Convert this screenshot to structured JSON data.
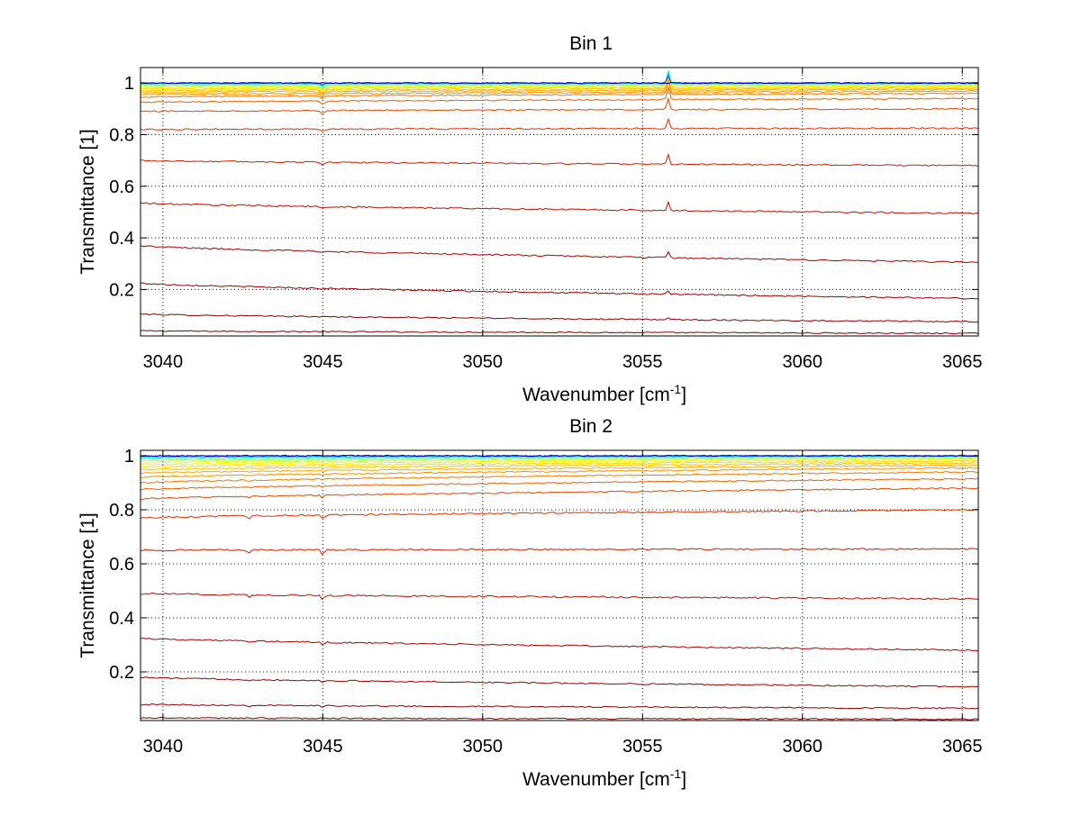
{
  "figure": {
    "background": "#ffffff"
  },
  "chart_data": [
    {
      "type": "line",
      "title": "Bin 1",
      "xlabel": "Wavenumber [cm",
      "xlabel_sup": "-1",
      "xlabel_end": "]",
      "ylabel": "Transmittance [1]",
      "xlim": [
        3039.3,
        3065.5
      ],
      "ylim": [
        0.02,
        1.06
      ],
      "xticks": [
        3040,
        3045,
        3050,
        3055,
        3060,
        3065
      ],
      "xtick_labels": [
        "3040",
        "3045",
        "3050",
        "3055",
        "3060",
        "3065"
      ],
      "yticks": [
        0.2,
        0.4,
        0.6,
        0.8,
        1
      ],
      "ytick_labels": [
        "0.2",
        "0.4",
        "0.6",
        "0.8",
        "1"
      ],
      "grid": true,
      "feature_peak_x": 3055.8,
      "series": [
        {
          "color": "#800000",
          "start": 0.04,
          "end": 0.03,
          "peak": 0.0
        },
        {
          "color": "#8b0000",
          "start": 0.105,
          "end": 0.075,
          "peak": 0.005
        },
        {
          "color": "#990000",
          "start": 0.225,
          "end": 0.165,
          "peak": 0.01
        },
        {
          "color": "#a80000",
          "start": 0.37,
          "end": 0.305,
          "peak": 0.02
        },
        {
          "color": "#b81000",
          "start": 0.535,
          "end": 0.495,
          "peak": 0.03
        },
        {
          "color": "#c82000",
          "start": 0.7,
          "end": 0.68,
          "peak": 0.035
        },
        {
          "color": "#d83000",
          "start": 0.82,
          "end": 0.825,
          "peak": 0.04
        },
        {
          "color": "#e04800",
          "start": 0.89,
          "end": 0.9,
          "peak": 0.045
        },
        {
          "color": "#e86000",
          "start": 0.925,
          "end": 0.94,
          "peak": 0.05
        },
        {
          "color": "#f07800",
          "start": 0.945,
          "end": 0.96,
          "peak": 0.055
        },
        {
          "color": "#f89000",
          "start": 0.955,
          "end": 0.968,
          "peak": 0.055
        },
        {
          "color": "#ffa800",
          "start": 0.963,
          "end": 0.975,
          "peak": 0.055
        },
        {
          "color": "#ffc000",
          "start": 0.97,
          "end": 0.98,
          "peak": 0.055
        },
        {
          "color": "#ffd800",
          "start": 0.976,
          "end": 0.985,
          "peak": 0.055
        },
        {
          "color": "#fff000",
          "start": 0.981,
          "end": 0.989,
          "peak": 0.055
        },
        {
          "color": "#e0ff20",
          "start": 0.986,
          "end": 0.992,
          "peak": 0.06
        },
        {
          "color": "#a0ff60",
          "start": 0.99,
          "end": 0.995,
          "peak": 0.06
        },
        {
          "color": "#60ffa0",
          "start": 0.994,
          "end": 0.997,
          "peak": 0.055
        },
        {
          "color": "#20ffe0",
          "start": 0.997,
          "end": 0.999,
          "peak": 0.05
        },
        {
          "color": "#00c0ff",
          "start": 0.999,
          "end": 1.0,
          "peak": 0.04
        },
        {
          "color": "#0060ff",
          "start": 1.0,
          "end": 1.0,
          "peak": 0.03
        },
        {
          "color": "#0000c0",
          "start": 1.0,
          "end": 1.0,
          "peak": 0.0
        }
      ]
    },
    {
      "type": "line",
      "title": "Bin 2",
      "xlabel": "Wavenumber [cm",
      "xlabel_sup": "-1",
      "xlabel_end": "]",
      "ylabel": "Transmittance [1]",
      "xlim": [
        3039.3,
        3065.5
      ],
      "ylim": [
        0.02,
        1.02
      ],
      "xticks": [
        3040,
        3045,
        3050,
        3055,
        3060,
        3065
      ],
      "xtick_labels": [
        "3040",
        "3045",
        "3050",
        "3055",
        "3060",
        "3065"
      ],
      "yticks": [
        0.2,
        0.4,
        0.6,
        0.8,
        1
      ],
      "ytick_labels": [
        "0.2",
        "0.4",
        "0.6",
        "0.8",
        "1"
      ],
      "grid": true,
      "feature_peak_x": 3045.0,
      "series": [
        {
          "color": "#800000",
          "start": 0.03,
          "end": 0.025,
          "peak": 0.0
        },
        {
          "color": "#8b0000",
          "start": 0.08,
          "end": 0.065,
          "peak": -0.005
        },
        {
          "color": "#990000",
          "start": 0.18,
          "end": 0.145,
          "peak": -0.008
        },
        {
          "color": "#a80000",
          "start": 0.325,
          "end": 0.28,
          "peak": -0.012
        },
        {
          "color": "#b81000",
          "start": 0.49,
          "end": 0.47,
          "peak": -0.015
        },
        {
          "color": "#c82000",
          "start": 0.65,
          "end": 0.655,
          "peak": -0.02
        },
        {
          "color": "#d83000",
          "start": 0.77,
          "end": 0.8,
          "peak": -0.015
        },
        {
          "color": "#e04800",
          "start": 0.84,
          "end": 0.88,
          "peak": -0.01
        },
        {
          "color": "#e86000",
          "start": 0.875,
          "end": 0.915,
          "peak": -0.008
        },
        {
          "color": "#f07800",
          "start": 0.9,
          "end": 0.94,
          "peak": -0.005
        },
        {
          "color": "#f89000",
          "start": 0.92,
          "end": 0.955,
          "peak": -0.004
        },
        {
          "color": "#ffa800",
          "start": 0.935,
          "end": 0.965,
          "peak": -0.003
        },
        {
          "color": "#ffc000",
          "start": 0.948,
          "end": 0.973,
          "peak": -0.002
        },
        {
          "color": "#ffd800",
          "start": 0.958,
          "end": 0.98,
          "peak": -0.002
        },
        {
          "color": "#fff000",
          "start": 0.967,
          "end": 0.985,
          "peak": -0.001
        },
        {
          "color": "#e0ff20",
          "start": 0.975,
          "end": 0.99,
          "peak": 0.0
        },
        {
          "color": "#a0ff60",
          "start": 0.982,
          "end": 0.993,
          "peak": 0.0
        },
        {
          "color": "#60ffa0",
          "start": 0.988,
          "end": 0.996,
          "peak": 0.0
        },
        {
          "color": "#20ffe0",
          "start": 0.993,
          "end": 0.998,
          "peak": 0.0
        },
        {
          "color": "#00c0ff",
          "start": 0.996,
          "end": 0.999,
          "peak": 0.0
        },
        {
          "color": "#0060ff",
          "start": 0.999,
          "end": 1.0,
          "peak": 0.0
        },
        {
          "color": "#0000c0",
          "start": 1.0,
          "end": 1.0,
          "peak": 0.0
        }
      ]
    }
  ]
}
